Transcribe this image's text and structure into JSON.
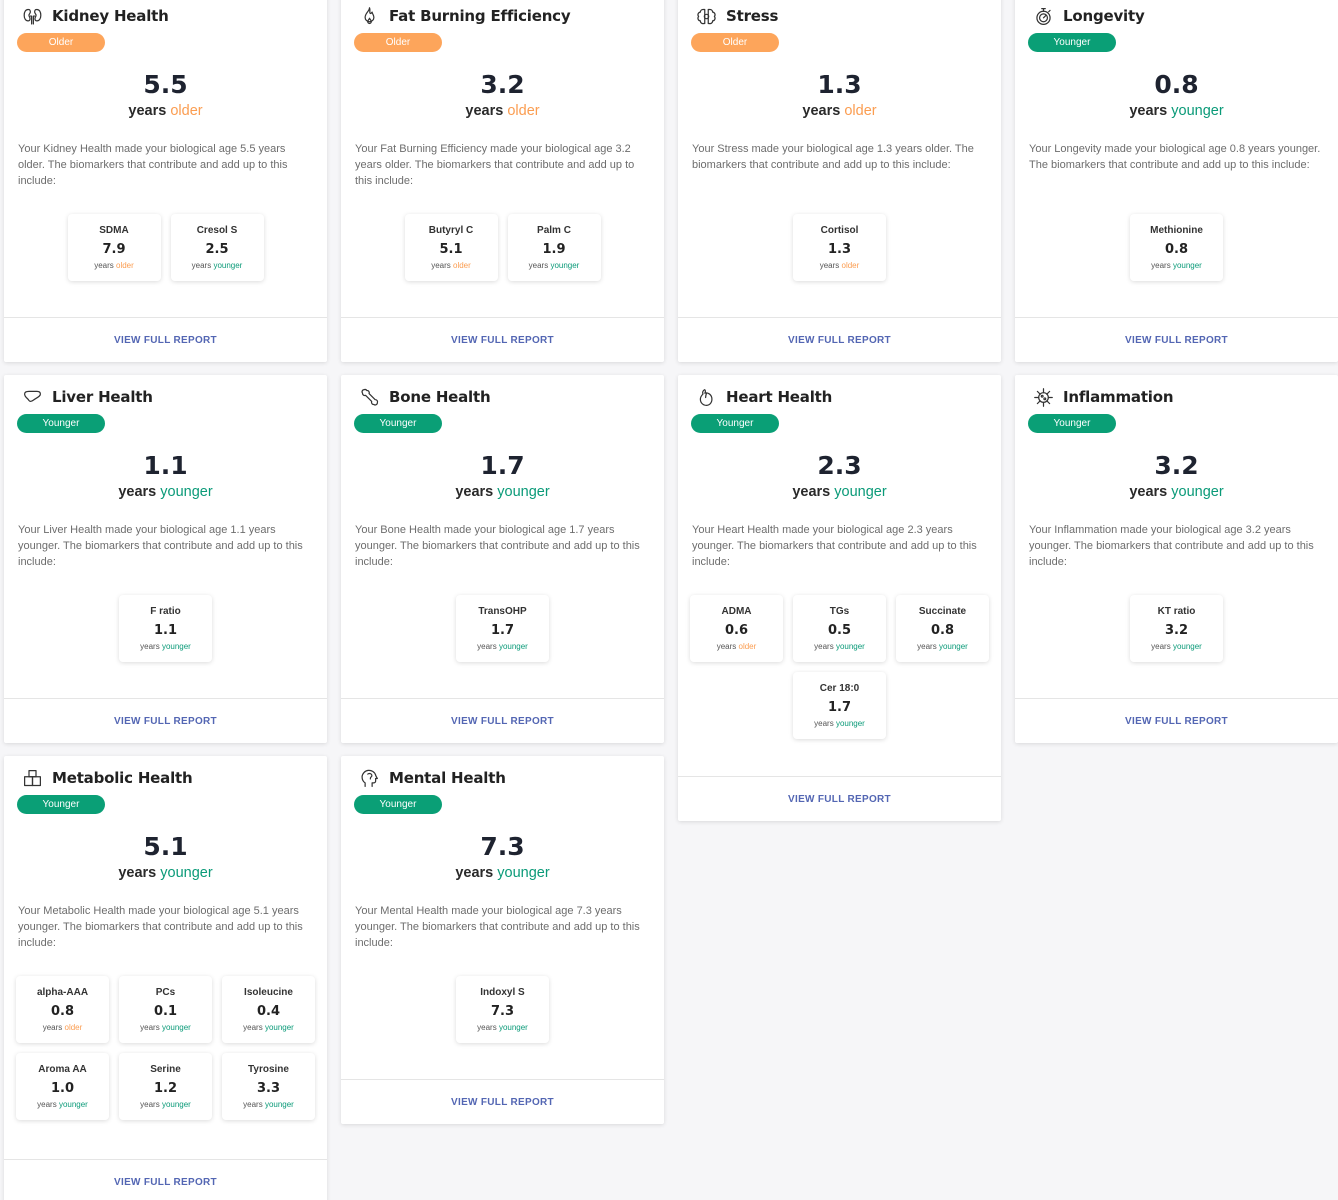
{
  "colors": {
    "older": "#fda55b",
    "younger": "#0a9f76",
    "link": "#5366b3"
  },
  "cards": [
    {
      "title": "Kidney Health",
      "icon": "kidney-icon",
      "badge": "Older",
      "value": "5.5",
      "years": "years",
      "direction": "older",
      "description": "Your Kidney Health made your biological age 5.5 years older. The biomarkers that contribute and add up to this include:",
      "biomarkers": [
        {
          "name": "SDMA",
          "value": "7.9",
          "years": "years",
          "direction": "older"
        },
        {
          "name": "Cresol S",
          "value": "2.5",
          "years": "years",
          "direction": "younger"
        }
      ],
      "link": "VIEW FULL REPORT"
    },
    {
      "title": "Fat Burning Efficiency",
      "icon": "flame-icon",
      "badge": "Older",
      "value": "3.2",
      "years": "years",
      "direction": "older",
      "description": "Your Fat Burning Efficiency made your biological age 3.2 years older. The biomarkers that contribute and add up to this include:",
      "biomarkers": [
        {
          "name": "Butyryl C",
          "value": "5.1",
          "years": "years",
          "direction": "older"
        },
        {
          "name": "Palm C",
          "value": "1.9",
          "years": "years",
          "direction": "younger"
        }
      ],
      "link": "VIEW FULL REPORT"
    },
    {
      "title": "Stress",
      "icon": "brain-icon",
      "badge": "Older",
      "value": "1.3",
      "years": "years",
      "direction": "older",
      "description": "Your Stress made your biological age 1.3 years older. The biomarkers that contribute and add up to this include:",
      "biomarkers": [
        {
          "name": "Cortisol",
          "value": "1.3",
          "years": "years",
          "direction": "older"
        }
      ],
      "link": "VIEW FULL REPORT"
    },
    {
      "title": "Longevity",
      "icon": "stopwatch-icon",
      "badge": "Younger",
      "value": "0.8",
      "years": "years",
      "direction": "younger",
      "description": "Your Longevity made your biological age 0.8 years younger. The biomarkers that contribute and add up to this include:",
      "biomarkers": [
        {
          "name": "Methionine",
          "value": "0.8",
          "years": "years",
          "direction": "younger"
        }
      ],
      "link": "VIEW FULL REPORT"
    },
    {
      "title": "Liver Health",
      "icon": "liver-icon",
      "badge": "Younger",
      "value": "1.1",
      "years": "years",
      "direction": "younger",
      "description": "Your Liver Health made your biological age 1.1 years younger. The biomarkers that contribute and add up to this include:",
      "biomarkers": [
        {
          "name": "F ratio",
          "value": "1.1",
          "years": "years",
          "direction": "younger"
        }
      ],
      "link": "VIEW FULL REPORT"
    },
    {
      "title": "Bone Health",
      "icon": "bone-icon",
      "badge": "Younger",
      "value": "1.7",
      "years": "years",
      "direction": "younger",
      "description": "Your Bone Health made your biological age 1.7 years younger. The biomarkers that contribute and add up to this include:",
      "biomarkers": [
        {
          "name": "TransOHP",
          "value": "1.7",
          "years": "years",
          "direction": "younger"
        }
      ],
      "link": "VIEW FULL REPORT"
    },
    {
      "title": "Heart Health",
      "icon": "heart-icon",
      "badge": "Younger",
      "value": "2.3",
      "years": "years",
      "direction": "younger",
      "description": "Your Heart Health made your biological age 2.3 years younger. The biomarkers that contribute and add up to this include:",
      "biomarkers": [
        {
          "name": "ADMA",
          "value": "0.6",
          "years": "years",
          "direction": "older"
        },
        {
          "name": "TGs",
          "value": "0.5",
          "years": "years",
          "direction": "younger"
        },
        {
          "name": "Succinate",
          "value": "0.8",
          "years": "years",
          "direction": "younger"
        },
        {
          "name": "Cer 18:0",
          "value": "1.7",
          "years": "years",
          "direction": "younger"
        }
      ],
      "link": "VIEW FULL REPORT"
    },
    {
      "title": "Inflammation",
      "icon": "virus-icon",
      "badge": "Younger",
      "value": "3.2",
      "years": "years",
      "direction": "younger",
      "description": "Your Inflammation made your biological age 3.2 years younger. The biomarkers that contribute and add up to this include:",
      "biomarkers": [
        {
          "name": "KT ratio",
          "value": "3.2",
          "years": "years",
          "direction": "younger"
        }
      ],
      "link": "VIEW FULL REPORT"
    },
    {
      "title": "Metabolic Health",
      "icon": "blocks-icon",
      "badge": "Younger",
      "value": "5.1",
      "years": "years",
      "direction": "younger",
      "description": "Your Metabolic Health made your biological age 5.1 years younger. The biomarkers that contribute and add up to this include:",
      "biomarkers": [
        {
          "name": "alpha-AAA",
          "value": "0.8",
          "years": "years",
          "direction": "older"
        },
        {
          "name": "PCs",
          "value": "0.1",
          "years": "years",
          "direction": "younger"
        },
        {
          "name": "Isoleucine",
          "value": "0.4",
          "years": "years",
          "direction": "younger"
        },
        {
          "name": "Aroma AA",
          "value": "1.0",
          "years": "years",
          "direction": "younger"
        },
        {
          "name": "Serine",
          "value": "1.2",
          "years": "years",
          "direction": "younger"
        },
        {
          "name": "Tyrosine",
          "value": "3.3",
          "years": "years",
          "direction": "younger"
        }
      ],
      "link": "VIEW FULL REPORT"
    },
    {
      "title": "Mental Health",
      "icon": "head-icon",
      "badge": "Younger",
      "value": "7.3",
      "years": "years",
      "direction": "younger",
      "description": "Your Mental Health made your biological age 7.3 years younger. The biomarkers that contribute and add up to this include:",
      "biomarkers": [
        {
          "name": "Indoxyl S",
          "value": "7.3",
          "years": "years",
          "direction": "younger"
        }
      ],
      "link": "VIEW FULL REPORT"
    }
  ]
}
